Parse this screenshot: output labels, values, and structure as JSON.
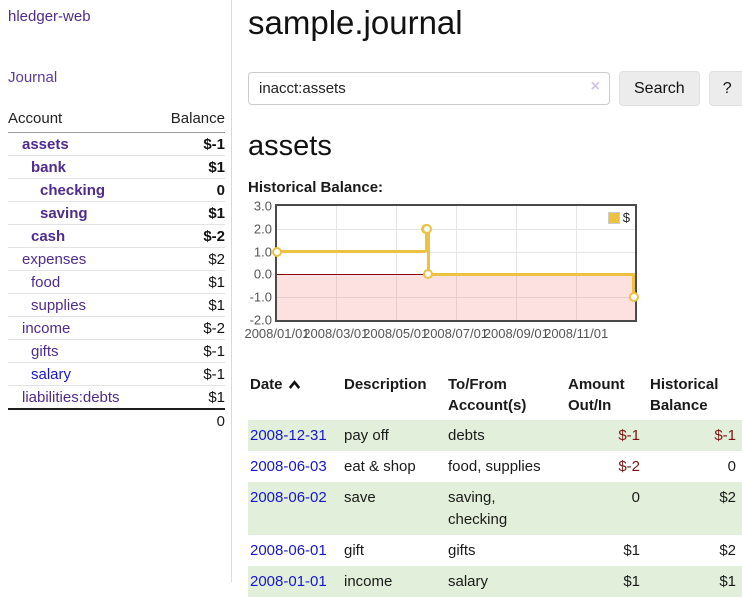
{
  "app": {
    "title": "hledger-web"
  },
  "colors": {
    "link_purple": "#4f2b8f",
    "link_blue": "#1616cf",
    "negative_strong": "#7d1512",
    "negative_faded": "#b16a6a",
    "row_stripe_green": "#e2efdb",
    "series_yellow": "#edc240",
    "chart_negative_fill": "#fbdede",
    "zero_line_red": "#8b0000"
  },
  "sidebar": {
    "journal_link": "Journal",
    "accounts": {
      "col_account": "Account",
      "col_balance": "Balance",
      "rows": [
        {
          "name": "assets",
          "balance": "$-1",
          "depth": 1,
          "emph": true,
          "balance_class": "neg-strong"
        },
        {
          "name": "bank",
          "balance": "$1",
          "depth": 2,
          "emph": true,
          "balance_class": ""
        },
        {
          "name": "checking",
          "balance": "0",
          "depth": 3,
          "emph": true,
          "balance_class": ""
        },
        {
          "name": "saving",
          "balance": "$1",
          "depth": 3,
          "emph": true,
          "balance_class": ""
        },
        {
          "name": "cash",
          "balance": "$-2",
          "depth": 2,
          "emph": true,
          "balance_class": "neg-strong"
        },
        {
          "name": "expenses",
          "balance": "$2",
          "depth": 1,
          "emph": false,
          "balance_class": ""
        },
        {
          "name": "food",
          "balance": "$1",
          "depth": 2,
          "emph": false,
          "balance_class": ""
        },
        {
          "name": "supplies",
          "balance": "$1",
          "depth": 2,
          "emph": false,
          "balance_class": ""
        },
        {
          "name": "income",
          "balance": "$-2",
          "depth": 1,
          "emph": false,
          "balance_class": "neg-faded"
        },
        {
          "name": "gifts",
          "balance": "$-1",
          "depth": 2,
          "emph": false,
          "balance_class": "neg-faded"
        },
        {
          "name": "salary",
          "balance": "$-1",
          "depth": 2,
          "emph": false,
          "balance_class": "neg-faded",
          "link": "blue"
        },
        {
          "name": "liabilities:debts",
          "balance": "$1",
          "depth": 1,
          "emph": false,
          "balance_class": ""
        }
      ],
      "total": "0"
    }
  },
  "main": {
    "title": "sample.journal",
    "search": {
      "value": "inacct:assets",
      "clear_icon": "×",
      "search_button": "Search",
      "help_button": "?"
    },
    "heading": "assets",
    "chart_label": "Historical Balance:"
  },
  "chart_data": {
    "type": "line",
    "step": true,
    "title": "Historical Balance:",
    "series": [
      {
        "name": "$",
        "color": "#edc240",
        "points": [
          [
            "2008-01-01",
            1
          ],
          [
            "2008-06-01",
            2
          ],
          [
            "2008-06-02",
            2
          ],
          [
            "2008-06-03",
            0
          ],
          [
            "2008-12-31",
            -1
          ]
        ]
      }
    ],
    "xrange": [
      "2008-01-01",
      "2008-12-31"
    ],
    "xtick_labels": [
      "2008/01/01",
      "2008/03/01",
      "2008/05/01",
      "2008/07/01",
      "2008/09/01",
      "2008/11/01"
    ],
    "ytick_labels": [
      "3.0",
      "2.0",
      "1.0",
      "0.0",
      "-1.0",
      "-2.0"
    ],
    "ylim": [
      -2,
      3
    ],
    "grid": true,
    "legend": {
      "label": "$",
      "position": "top-right",
      "swatch_color": "#edc240"
    },
    "zero_line_color": "#8b0000",
    "negative_region_fill": "#fbdede",
    "marker_style": "open-circle"
  },
  "register": {
    "headers": {
      "date": "Date",
      "sort_icon": "chevron-up",
      "description": "Description",
      "accounts": "To/From Account(s)",
      "amount": "Amount Out/In",
      "balance": "Historical Balance"
    },
    "rows": [
      {
        "date": "2008-12-31",
        "description": "pay off",
        "accounts": "debts",
        "amount": "$-1",
        "balance": "$-1",
        "amount_neg": true,
        "balance_neg": true
      },
      {
        "date": "2008-06-03",
        "description": "eat & shop",
        "accounts": "food, supplies",
        "amount": "$-2",
        "balance": "0",
        "amount_neg": true,
        "balance_neg": false
      },
      {
        "date": "2008-06-02",
        "description": "save",
        "accounts": "saving, checking",
        "amount": "0",
        "balance": "$2",
        "amount_neg": false,
        "balance_neg": false
      },
      {
        "date": "2008-06-01",
        "description": "gift",
        "accounts": "gifts",
        "amount": "$1",
        "balance": "$2",
        "amount_neg": false,
        "balance_neg": false
      },
      {
        "date": "2008-01-01",
        "description": "income",
        "accounts": "salary",
        "amount": "$1",
        "balance": "$1",
        "amount_neg": false,
        "balance_neg": false
      }
    ]
  }
}
